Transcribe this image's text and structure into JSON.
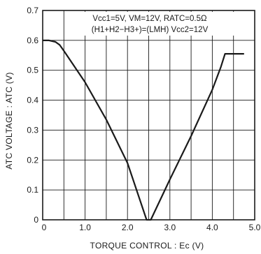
{
  "chart_data": {
    "type": "line",
    "xlabel": "TORQUE CONTROL : Ec (V)",
    "ylabel": "ATC VOLTAGE : ATC (V)",
    "xlim": [
      0,
      5.0
    ],
    "ylim": [
      0,
      0.7
    ],
    "xticks": [
      "0",
      "1.0",
      "2.0",
      "3.0",
      "4.0",
      "5.0"
    ],
    "yticks": [
      "0",
      "0.1",
      "0.2",
      "0.3",
      "0.4",
      "0.5",
      "0.6",
      "0.7"
    ],
    "grid": true,
    "annotations": [
      "Vcc1=5V, VM=12V, RATC=0.5Ω",
      "(H1+H2−H3+)=(LMH) Vcc2=12V"
    ],
    "series": [
      {
        "x": [
          0,
          0.15,
          0.3,
          0.4,
          0.5,
          1.0,
          1.5,
          2.0,
          2.45,
          2.55,
          3.0,
          3.5,
          4.0,
          4.2,
          4.3,
          4.75
        ],
        "y": [
          0.6,
          0.6,
          0.595,
          0.585,
          0.565,
          0.46,
          0.335,
          0.19,
          0.0,
          0.0,
          0.135,
          0.28,
          0.435,
          0.51,
          0.555,
          0.555
        ]
      }
    ],
    "colors": {
      "line": "#1a1a1a",
      "grid": "#1a1a1a",
      "background": "#ffffff"
    }
  }
}
